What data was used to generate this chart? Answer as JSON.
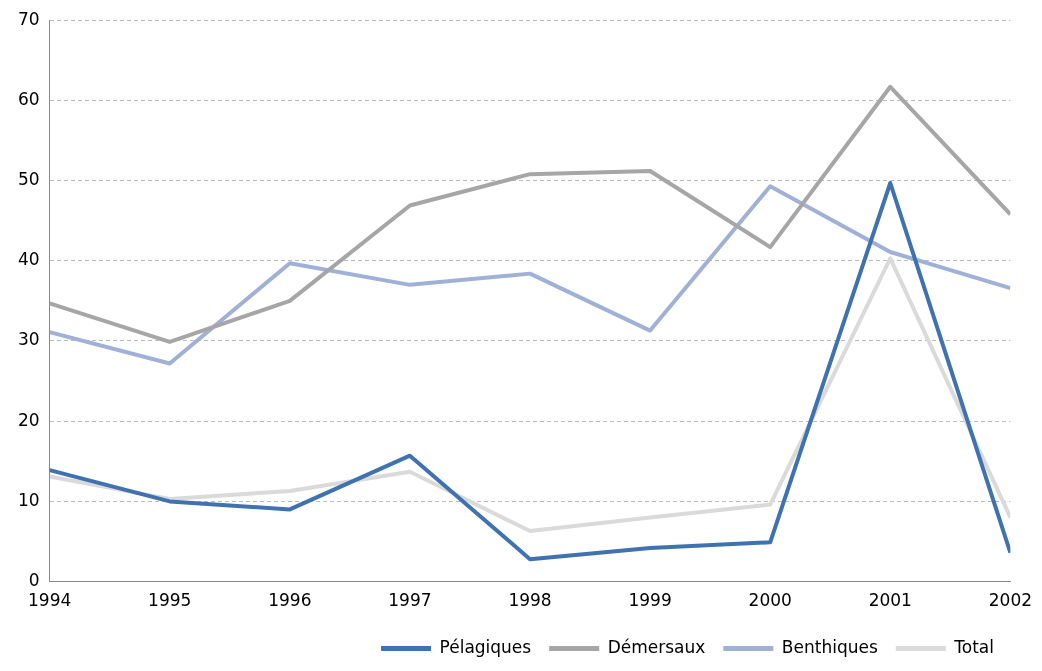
{
  "chart_data": {
    "type": "line",
    "x": [
      1994,
      1995,
      1996,
      1997,
      1998,
      1999,
      2000,
      2001,
      2002
    ],
    "xlim": [
      1994,
      2002
    ],
    "xticks": [
      1994,
      1995,
      1996,
      1997,
      1998,
      1999,
      2000,
      2001,
      2002
    ],
    "ylim": [
      0,
      70
    ],
    "yticks": [
      0,
      10,
      20,
      30,
      40,
      50,
      60,
      70
    ],
    "grid": "y",
    "legend": "bottom",
    "marker": "none",
    "line_style": "solid",
    "series": [
      {
        "name": "Pélagiques",
        "color": "#3f72b0",
        "values": [
          13.9,
          10.0,
          9.0,
          15.7,
          2.8,
          4.2,
          4.9,
          49.7,
          3.6
        ]
      },
      {
        "name": "Démersaux",
        "color": "#a6a6a6",
        "values": [
          34.7,
          29.9,
          35.0,
          46.9,
          50.8,
          51.2,
          41.7,
          61.7,
          45.8
        ]
      },
      {
        "name": "Benthiques",
        "color": "#9fb1d6",
        "values": [
          31.1,
          27.2,
          39.7,
          37.0,
          38.4,
          31.3,
          49.3,
          41.1,
          36.6
        ]
      },
      {
        "name": "Total",
        "color": "#dadada",
        "values": [
          13.1,
          10.3,
          11.3,
          13.7,
          6.3,
          8.0,
          9.6,
          40.3,
          8.0
        ]
      }
    ]
  }
}
